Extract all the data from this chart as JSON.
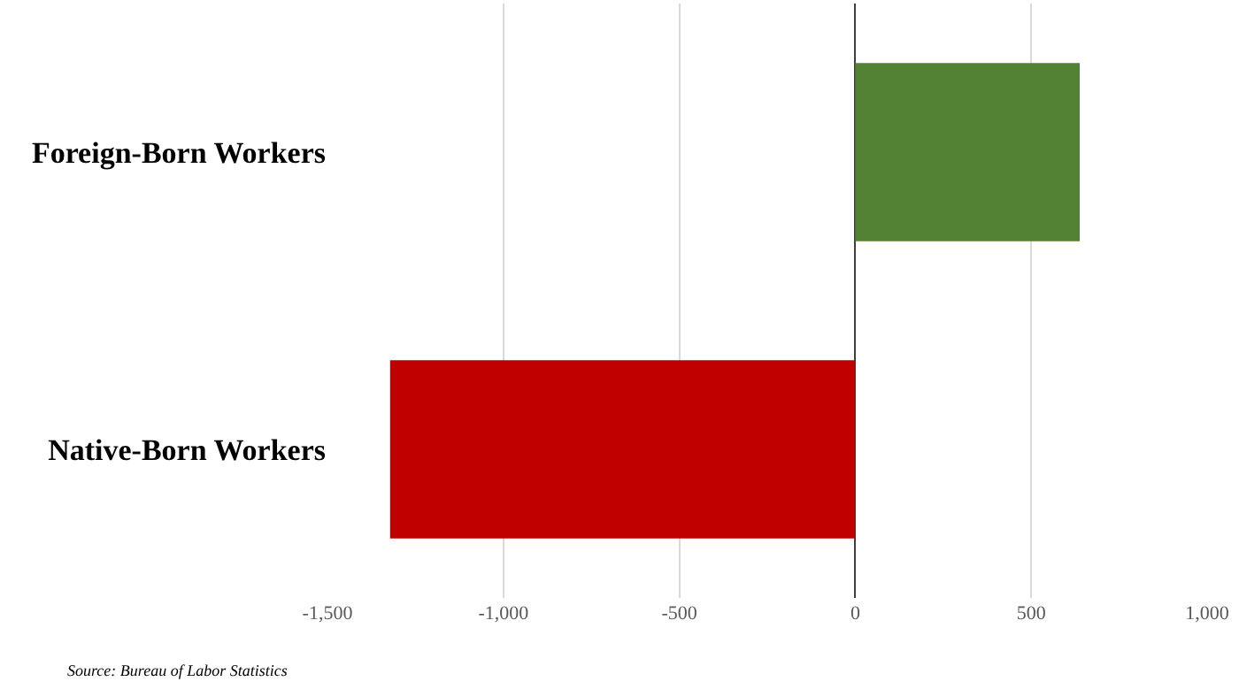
{
  "chart_data": {
    "type": "bar",
    "orientation": "horizontal",
    "categories": [
      "Foreign-Born Workers",
      "Native-Born Workers"
    ],
    "values": [
      638,
      -1322
    ],
    "colors": [
      "#548235",
      "#c00000"
    ],
    "xlim": [
      -1500,
      1000
    ],
    "xticks": [
      {
        "value": -1500,
        "label": "-1,500"
      },
      {
        "value": -1000,
        "label": "-1,000"
      },
      {
        "value": -500,
        "label": "-500"
      },
      0,
      500,
      {
        "value": 1000,
        "label": "1,000"
      }
    ],
    "grid": "x",
    "annotations": [
      "Source: Bureau of Labor Statistics"
    ]
  }
}
